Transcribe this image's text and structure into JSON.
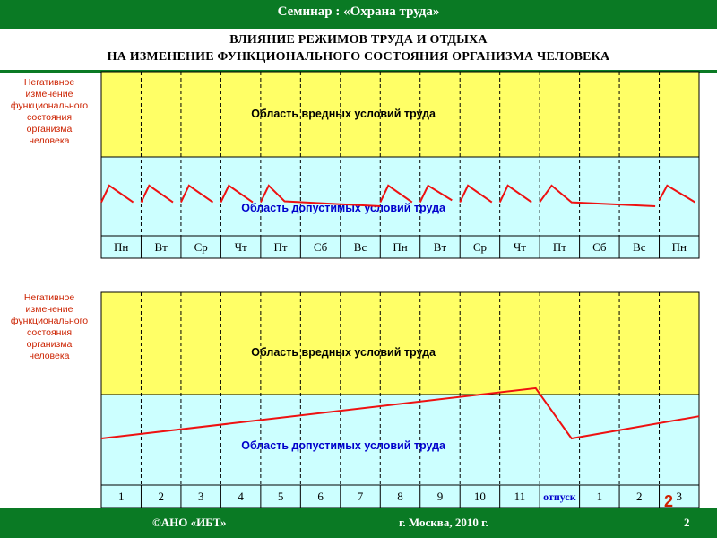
{
  "header": {
    "seminar": "Семинар : «Охрана труда»",
    "title_line1": "ВЛИЯНИЕ РЕЖИМОВ ТРУДА И ОТДЫХА",
    "title_line2": "НА ИЗМЕНЕНИЕ ФУНКЦИОНАЛЬНОГО СОСТОЯНИЯ ОРГАНИЗМА ЧЕЛОВЕКА"
  },
  "side_label": {
    "lines": [
      "Негативное",
      "изменение",
      "функционального",
      "состояния",
      "организма",
      "человека"
    ]
  },
  "colors": {
    "harmful": "#ffff66",
    "permissible": "#ccffff",
    "line": "#ee1111",
    "region_text": "#0000cc",
    "side_text": "#cc2200",
    "band": "#0a7a24"
  },
  "footer": {
    "org": "©АНО «ИБТ»",
    "city": "г. Москва,  2010 г.",
    "page": "2"
  },
  "overlay_number": "2",
  "chart_data": [
    {
      "type": "line",
      "regions": {
        "upper": "Область вредных условий труда",
        "lower": "Область допустимых условий труда"
      },
      "categories": [
        "Пн",
        "Вт",
        "Ср",
        "Чт",
        "Пт",
        "Сб",
        "Вс",
        "Пн",
        "Вт",
        "Ср",
        "Чт",
        "Пт",
        "Сб",
        "Вс",
        "Пн"
      ],
      "segments": [
        [
          [
            0,
            0.08
          ],
          [
            0.2,
            0.42
          ],
          [
            0.8,
            0.08
          ]
        ],
        [
          [
            1,
            0.08
          ],
          [
            1.2,
            0.42
          ],
          [
            1.8,
            0.08
          ]
        ],
        [
          [
            2,
            0.08
          ],
          [
            2.2,
            0.42
          ],
          [
            2.8,
            0.08
          ]
        ],
        [
          [
            3,
            0.08
          ],
          [
            3.2,
            0.42
          ],
          [
            3.8,
            0.08
          ]
        ],
        [
          [
            4,
            0.08
          ],
          [
            4.2,
            0.42
          ],
          [
            4.6,
            0.1
          ],
          [
            7.0,
            0.0
          ]
        ],
        [
          [
            7,
            0.08
          ],
          [
            7.2,
            0.42
          ],
          [
            7.8,
            0.08
          ]
        ],
        [
          [
            8,
            0.08
          ],
          [
            8.2,
            0.42
          ],
          [
            8.8,
            0.12
          ]
        ],
        [
          [
            9,
            0.08
          ],
          [
            9.2,
            0.42
          ],
          [
            9.8,
            0.08
          ]
        ],
        [
          [
            10,
            0.08
          ],
          [
            10.2,
            0.42
          ],
          [
            10.8,
            0.08
          ]
        ],
        [
          [
            11,
            0.08
          ],
          [
            11.3,
            0.42
          ],
          [
            11.8,
            0.08
          ],
          [
            13.9,
            0.0
          ]
        ],
        [
          [
            14,
            0.12
          ],
          [
            14.2,
            0.42
          ],
          [
            14.9,
            0.08
          ]
        ]
      ],
      "y_ticks": [
        "",
        ""
      ]
    },
    {
      "type": "line",
      "regions": {
        "upper": "Область вредных условий труда",
        "lower": "Область допустимых условий труда"
      },
      "categories": [
        "1",
        "2",
        "3",
        "4",
        "5",
        "6",
        "7",
        "8",
        "9",
        "10",
        "11",
        "отпуск",
        "1",
        "2",
        "3"
      ],
      "vacation_label_index": 11,
      "segments": [
        [
          [
            0,
            0.0
          ],
          [
            10.9,
            0.95
          ],
          [
            11.8,
            0.0
          ],
          [
            15.0,
            0.42
          ]
        ]
      ]
    }
  ]
}
